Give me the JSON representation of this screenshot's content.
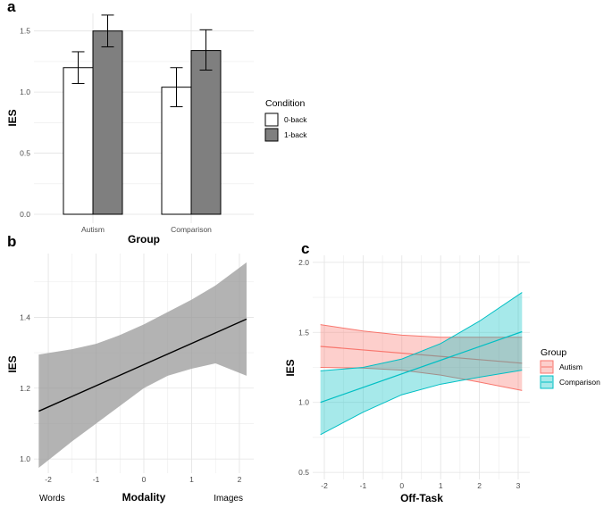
{
  "chart_data": [
    {
      "panel": "a",
      "type": "bar",
      "xlabel": "Group",
      "ylabel": "IES",
      "categories": [
        "Autism",
        "Comparison"
      ],
      "ylim": [
        0,
        1.6
      ],
      "yticks": [
        "0.0",
        "0.5",
        "1.0",
        "1.5"
      ],
      "legend_title": "Condition",
      "legend_position": "right",
      "series": [
        {
          "name": "0-back",
          "color": "#ffffff",
          "values": [
            1.2,
            1.04
          ],
          "err_low": [
            1.07,
            0.88
          ],
          "err_high": [
            1.33,
            1.2
          ]
        },
        {
          "name": "1-back",
          "color": "#7f7f7f",
          "values": [
            1.5,
            1.34
          ],
          "err_low": [
            1.37,
            1.18
          ],
          "err_high": [
            1.63,
            1.51
          ]
        }
      ]
    },
    {
      "panel": "b",
      "type": "line",
      "xlabel": "Modality",
      "ylabel": "IES",
      "xlim": [
        -2.3,
        2.3
      ],
      "ylim": [
        0.96,
        1.58
      ],
      "xticks": [
        "-2",
        "-1",
        "0",
        "1",
        "2"
      ],
      "yticks": [
        "1.0",
        "1.2",
        "1.4"
      ],
      "xtick_values": [
        -2,
        -1,
        0,
        1,
        2
      ],
      "ytick_values": [
        1.0,
        1.2,
        1.4
      ],
      "x_end_labels": [
        "Words",
        "Images"
      ],
      "fit_color": "#000000",
      "band_color": "#999999",
      "x": [
        -2.2,
        2.15
      ],
      "fit": [
        1.135,
        1.395
      ],
      "ci_x": [
        -2.2,
        -1.5,
        -1.0,
        -0.5,
        0,
        0.5,
        1.0,
        1.5,
        2.15
      ],
      "ci_lower": [
        0.975,
        1.05,
        1.1,
        1.15,
        1.2,
        1.235,
        1.255,
        1.27,
        1.235
      ],
      "ci_upper": [
        1.295,
        1.31,
        1.325,
        1.35,
        1.38,
        1.415,
        1.45,
        1.49,
        1.555
      ]
    },
    {
      "panel": "c",
      "type": "line",
      "xlabel": "Off-Task",
      "ylabel": "IES",
      "xlim": [
        -2.3,
        3.3
      ],
      "ylim": [
        0.45,
        2.05
      ],
      "xticks": [
        "-2",
        "-1",
        "0",
        "1",
        "2",
        "3"
      ],
      "yticks": [
        "0.5",
        "1.0",
        "1.5",
        "2.0"
      ],
      "xtick_values": [
        -2,
        -1,
        0,
        1,
        2,
        3
      ],
      "ytick_values": [
        0.5,
        1.0,
        1.5,
        2.0
      ],
      "legend_title": "Group",
      "legend_position": "right",
      "series": [
        {
          "name": "Autism",
          "color": "#f8766d",
          "x": [
            -2.1,
            3.1
          ],
          "fit": [
            1.4,
            1.28
          ],
          "ci_x": [
            -2.1,
            -1,
            0,
            1,
            2,
            3.1
          ],
          "ci_lower": [
            1.25,
            1.245,
            1.23,
            1.195,
            1.145,
            1.085
          ],
          "ci_upper": [
            1.555,
            1.51,
            1.48,
            1.465,
            1.465,
            1.465
          ]
        },
        {
          "name": "Comparison",
          "color": "#00bfc4",
          "x": [
            -2.1,
            3.1
          ],
          "fit": [
            1.0,
            1.505
          ],
          "ci_x": [
            -2.1,
            -1,
            0,
            1,
            2,
            3.1
          ],
          "ci_lower": [
            0.77,
            0.93,
            1.055,
            1.13,
            1.18,
            1.23
          ],
          "ci_upper": [
            1.225,
            1.25,
            1.31,
            1.42,
            1.58,
            1.785
          ]
        }
      ]
    }
  ]
}
